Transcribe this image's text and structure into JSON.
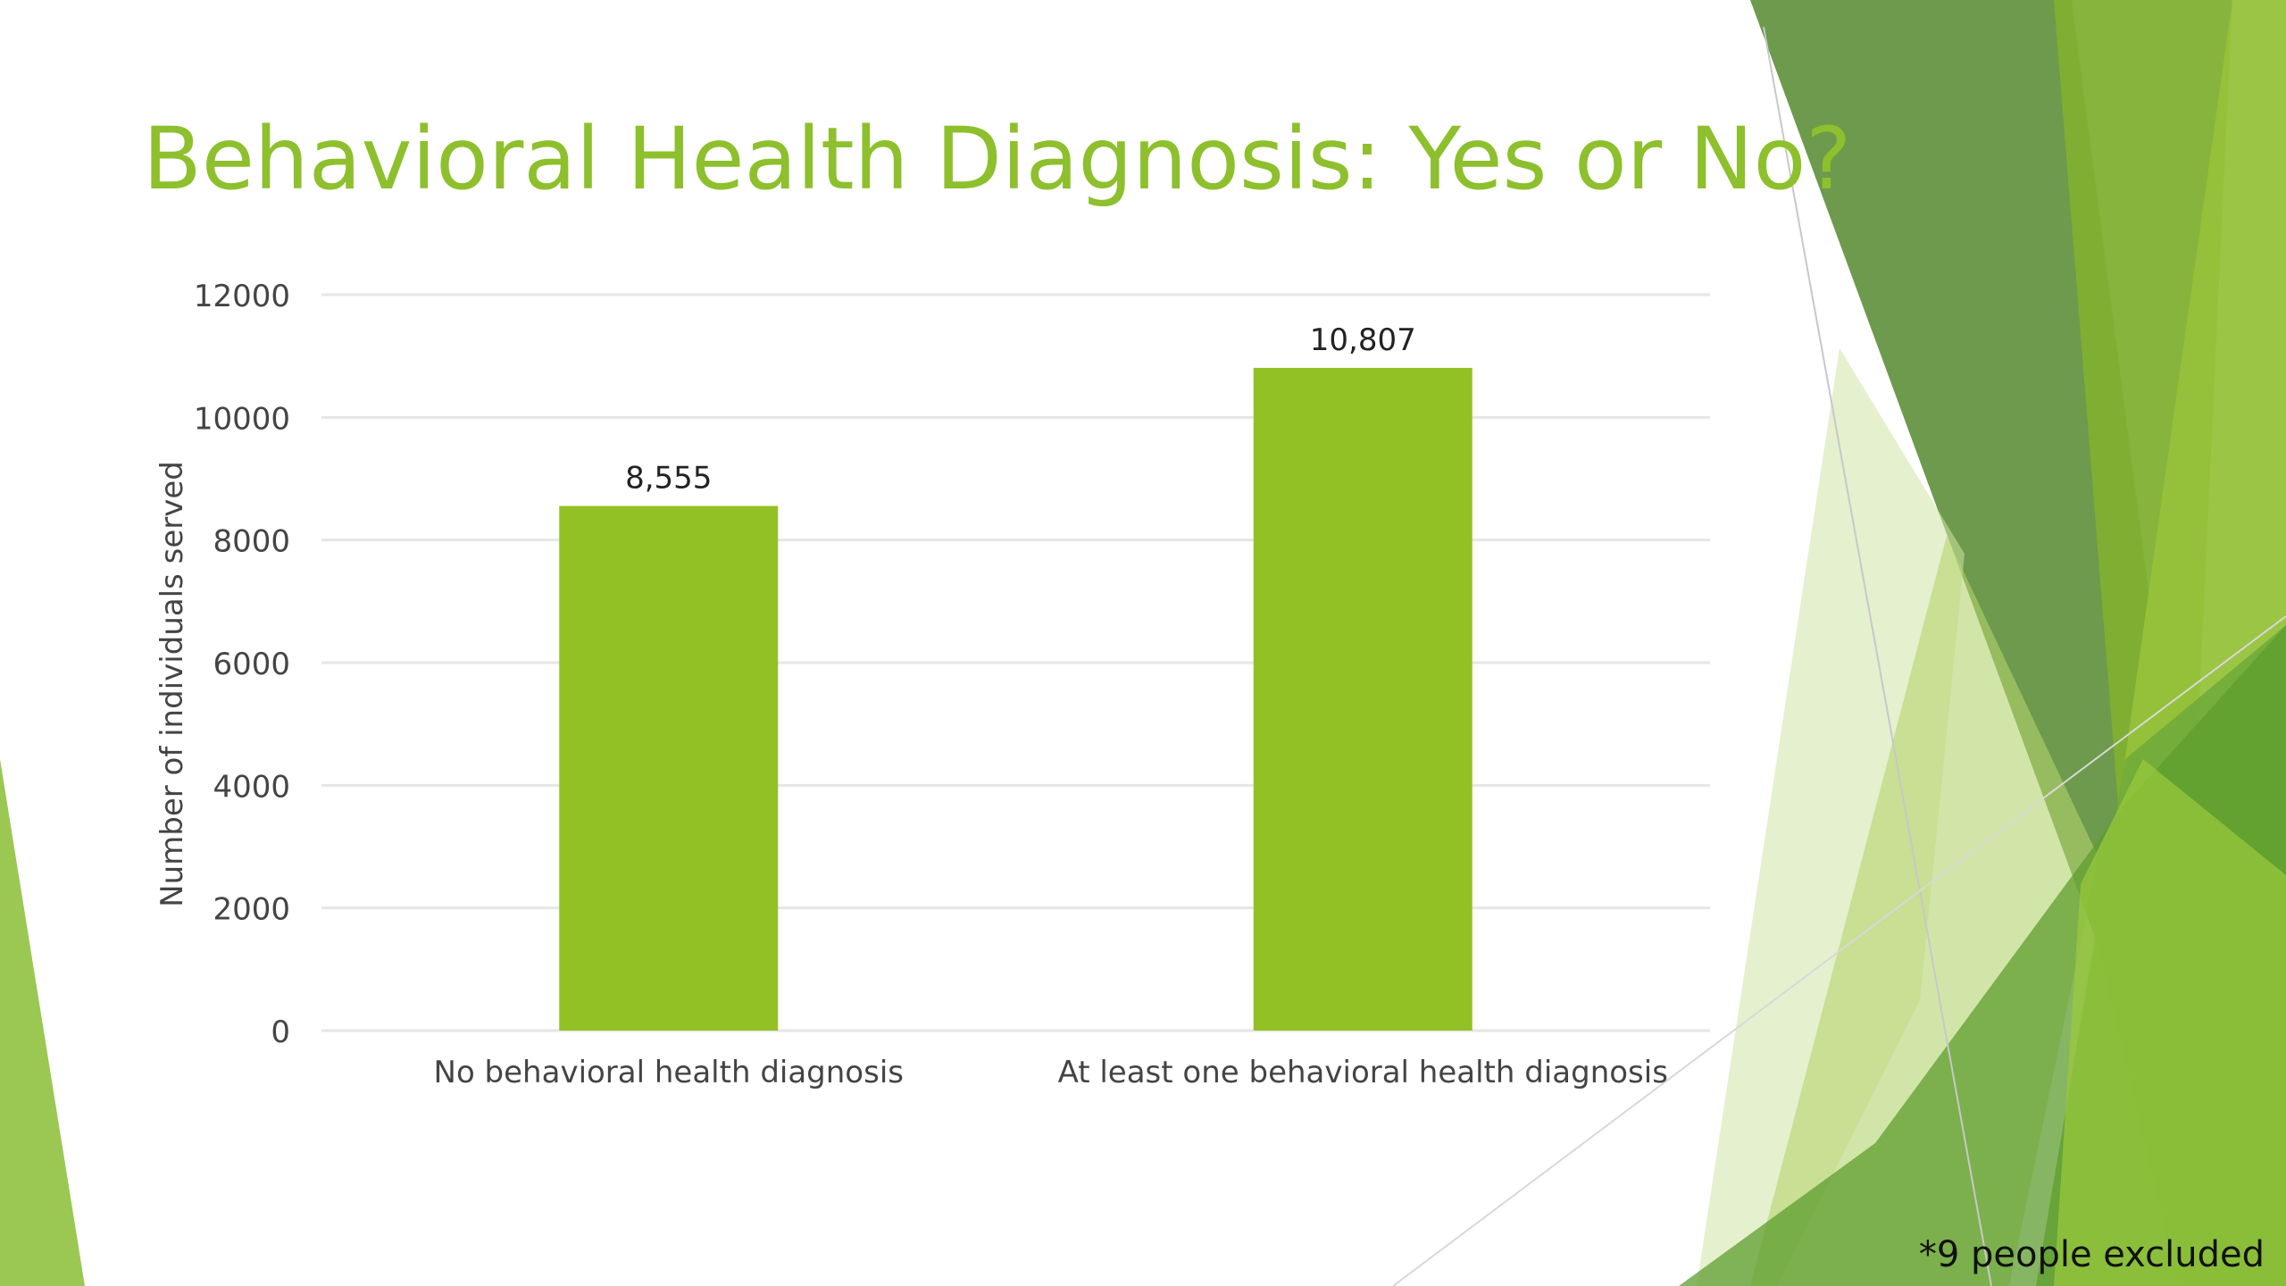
{
  "slide": {
    "title": "Behavioral Health Diagnosis: Yes or No?",
    "footnote": "*9 people excluded"
  },
  "colors": {
    "title": "#8dc02c",
    "bar": "#92c125",
    "axis_text": "#444444",
    "grid": "#e6e6e6"
  },
  "chart_data": {
    "type": "bar",
    "title": "",
    "xlabel": "",
    "ylabel": "Number of individuals served",
    "categories": [
      "No behavioral health diagnosis",
      "At least one behavioral health diagnosis"
    ],
    "values": [
      8555,
      10807
    ],
    "data_labels": [
      "8,555",
      "10,807"
    ],
    "ylim": [
      0,
      12000
    ],
    "yticks": [
      0,
      2000,
      4000,
      6000,
      8000,
      10000,
      12000
    ],
    "ytick_labels": [
      "0",
      "2000",
      "4000",
      "6000",
      "8000",
      "10000",
      "12000"
    ],
    "grid": true,
    "legend": "none"
  }
}
